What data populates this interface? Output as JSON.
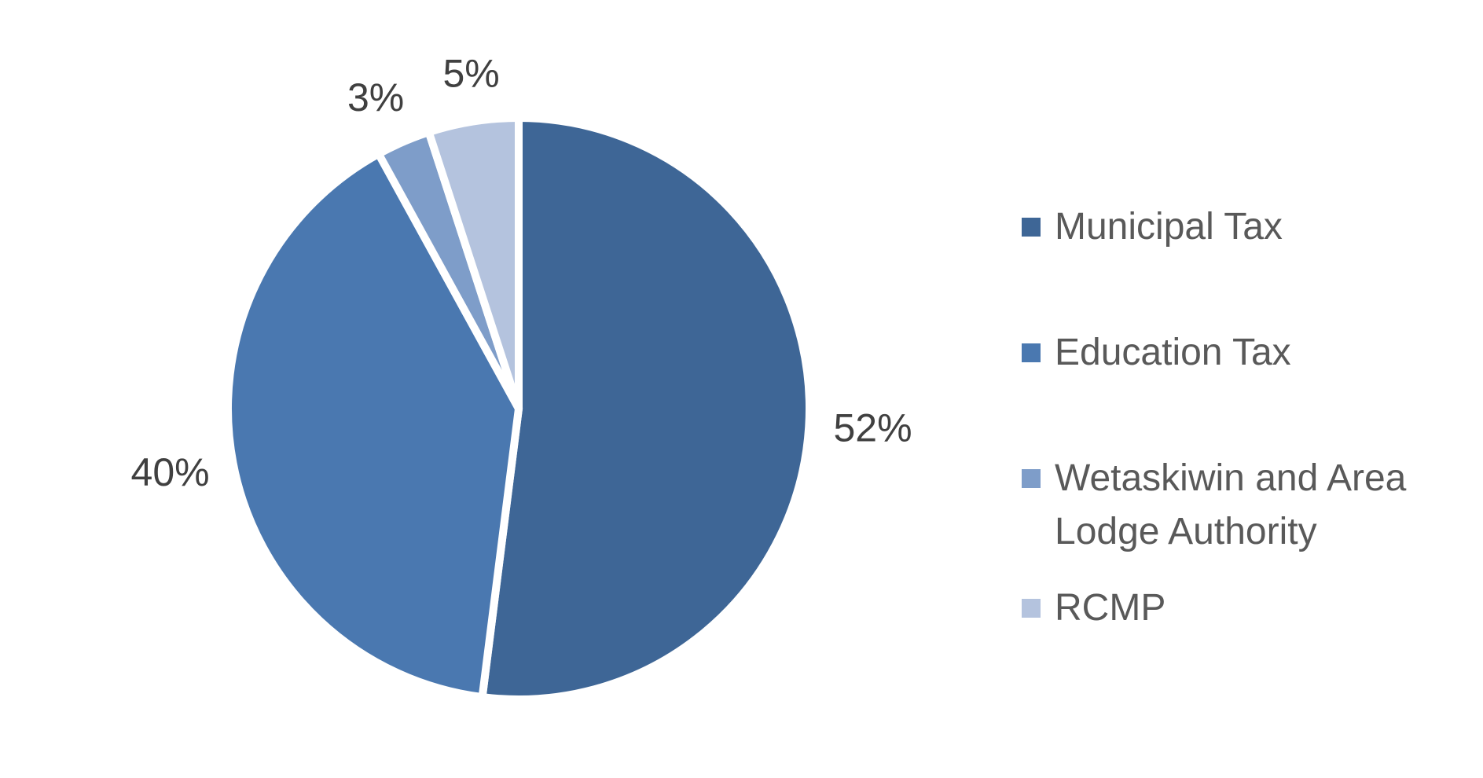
{
  "chart_data": {
    "type": "pie",
    "title": "",
    "categories": [
      "Municipal Tax",
      "Education Tax",
      "Wetaskiwin and Area Lodge Authority",
      "RCMP"
    ],
    "values": [
      52,
      40,
      3,
      5
    ],
    "value_labels": [
      "52%",
      "40%",
      "3%",
      "5%"
    ],
    "colors": [
      "#3e6696",
      "#4a78b0",
      "#7e9dc9",
      "#b4c3de"
    ],
    "legend_position": "right",
    "slice_order": "clockwise from top"
  },
  "legend": {
    "items": [
      {
        "label": "Municipal Tax",
        "color": "#3e6696"
      },
      {
        "label": "Education Tax",
        "color": "#4a78b0"
      },
      {
        "label": "Wetaskiwin and Area Lodge Authority",
        "color": "#7e9dc9"
      },
      {
        "label": "RCMP",
        "color": "#b4c3de"
      }
    ]
  }
}
